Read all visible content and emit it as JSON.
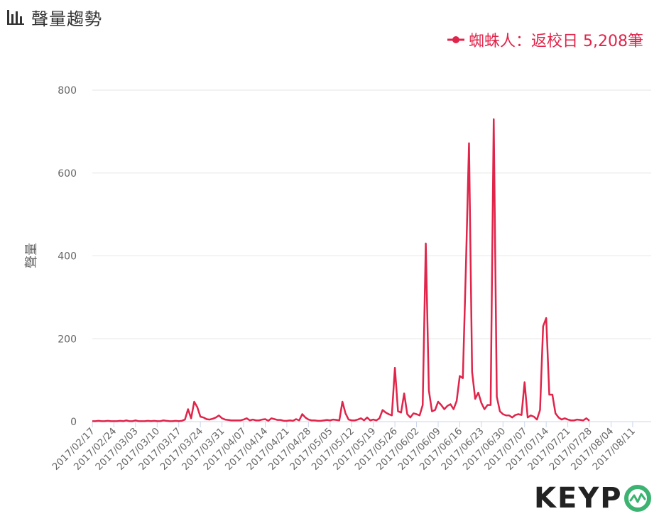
{
  "header": {
    "title": "聲量趨勢",
    "icon": "bar-chart-icon"
  },
  "legend": {
    "series_label": "蜘蛛人：返校日 5,208筆"
  },
  "logo": {
    "text_before": "KEYP"
  },
  "colors": {
    "series": "#e0244a",
    "grid": "#e6e6e6",
    "axis_text": "#666666",
    "logo_accent": "#3cb371",
    "logo_dark": "#222222"
  },
  "chart_data": {
    "type": "line",
    "ylabel": "聲量",
    "ylim": [
      0,
      800
    ],
    "yticks": [
      "0",
      "200",
      "400",
      "600",
      "800"
    ],
    "start_date": "2017/02/17",
    "end_date": "2017/08/17",
    "xtick_labels": [
      "2017/02/17",
      "2017/02/24",
      "2017/03/03",
      "2017/03/10",
      "2017/03/17",
      "2017/03/24",
      "2017/03/31",
      "2017/04/07",
      "2017/04/14",
      "2017/04/21",
      "2017/04/28",
      "2017/05/05",
      "2017/05/12",
      "2017/05/19",
      "2017/05/26",
      "2017/06/02",
      "2017/06/09",
      "2017/06/16",
      "2017/06/23",
      "2017/06/30",
      "2017/07/07",
      "2017/07/14",
      "2017/07/21",
      "2017/07/28",
      "2017/08/04",
      "2017/08/11"
    ],
    "series": [
      {
        "name": "蜘蛛人：返校日",
        "values": [
          1,
          1,
          2,
          1,
          1,
          2,
          1,
          1,
          1,
          2,
          1,
          3,
          1,
          1,
          3,
          1,
          1,
          1,
          2,
          1,
          2,
          1,
          1,
          3,
          2,
          1,
          1,
          2,
          1,
          2,
          5,
          30,
          8,
          48,
          35,
          12,
          10,
          6,
          5,
          7,
          10,
          15,
          8,
          5,
          4,
          3,
          3,
          3,
          3,
          5,
          8,
          3,
          5,
          3,
          3,
          5,
          6,
          2,
          8,
          6,
          4,
          4,
          2,
          2,
          3,
          2,
          6,
          3,
          18,
          10,
          5,
          3,
          3,
          2,
          2,
          3,
          4,
          3,
          5,
          4,
          3,
          48,
          20,
          5,
          3,
          3,
          5,
          8,
          3,
          10,
          3,
          5,
          3,
          8,
          28,
          22,
          18,
          15,
          130,
          25,
          22,
          68,
          18,
          10,
          20,
          18,
          15,
          40,
          430,
          75,
          25,
          28,
          48,
          40,
          30,
          38,
          42,
          30,
          50,
          110,
          105,
          375,
          672,
          120,
          55,
          70,
          45,
          30,
          40,
          40,
          730,
          60,
          25,
          18,
          15,
          15,
          10,
          16,
          18,
          16,
          95,
          10,
          15,
          12,
          5,
          28,
          230,
          250,
          65,
          65,
          20,
          10,
          5,
          8,
          5,
          3,
          3,
          5,
          4,
          3,
          8,
          2
        ]
      }
    ]
  }
}
